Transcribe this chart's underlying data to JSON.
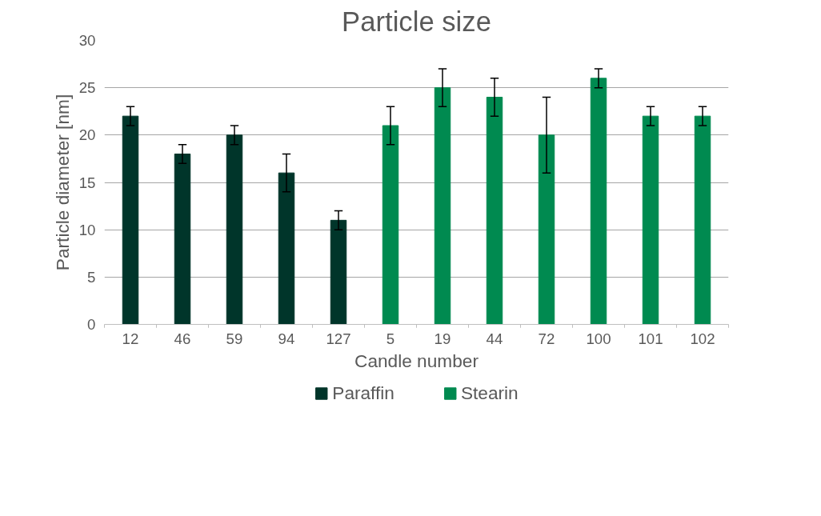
{
  "chart_data": {
    "type": "bar",
    "title": "Particle size",
    "xlabel": "Candle number",
    "ylabel": "Particle diameter [nm]",
    "categories": [
      "12",
      "46",
      "59",
      "94",
      "127",
      "5",
      "19",
      "44",
      "72",
      "100",
      "101",
      "102"
    ],
    "series": [
      {
        "name": "Paraffin",
        "color": "#00352a",
        "values": [
          22,
          18,
          20,
          16,
          11,
          null,
          null,
          null,
          null,
          null,
          null,
          null
        ],
        "errors": [
          1,
          1,
          1,
          2,
          1,
          null,
          null,
          null,
          null,
          null,
          null,
          null
        ]
      },
      {
        "name": "Stearin",
        "color": "#008a50",
        "values": [
          null,
          null,
          null,
          null,
          null,
          21,
          25,
          24,
          20,
          26,
          22,
          22
        ],
        "errors": [
          null,
          null,
          null,
          null,
          null,
          2,
          2,
          2,
          4,
          1,
          1,
          1
        ]
      }
    ],
    "ylim": [
      0,
      30
    ],
    "yticks": [
      0,
      5,
      10,
      15,
      20,
      25,
      30
    ],
    "grid": "y",
    "legend": "bottom"
  }
}
